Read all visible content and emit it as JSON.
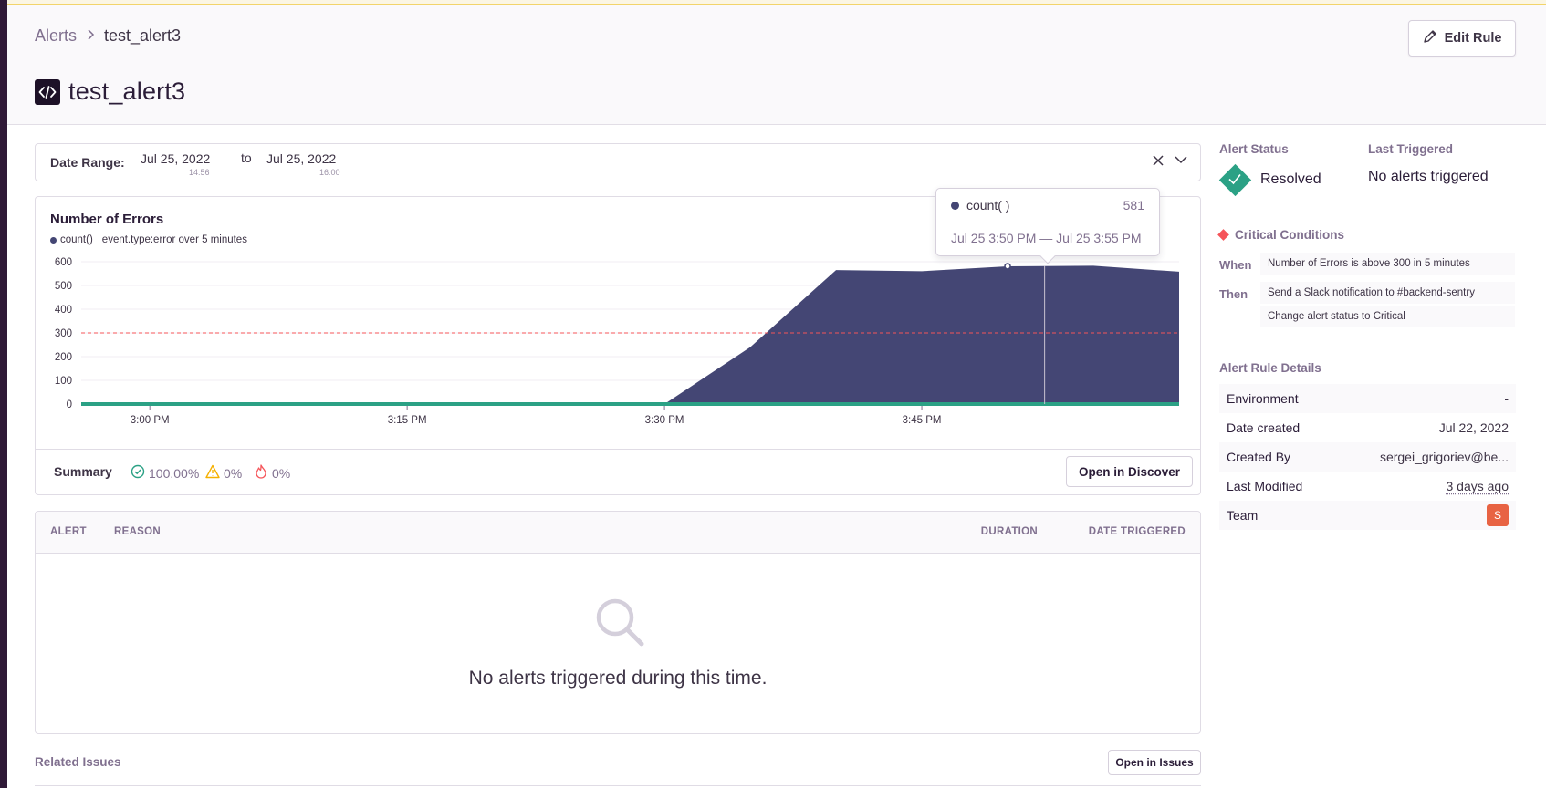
{
  "breadcrumb": {
    "root": "Alerts",
    "current": "test_alert3"
  },
  "header": {
    "title": "test_alert3",
    "edit_button": "Edit Rule"
  },
  "date_range": {
    "label": "Date Range:",
    "start_date": "Jul 25, 2022",
    "start_time": "14:56",
    "to": "to",
    "end_date": "Jul 25, 2022",
    "end_time": "16:00"
  },
  "chart_card": {
    "title": "Number of Errors",
    "legend_series": "count()",
    "legend_query": "event.type:error over 5 minutes",
    "summary_label": "Summary",
    "stats": {
      "resolved": "100.00%",
      "warning": "0%",
      "critical": "0%"
    },
    "open_discover": "Open in Discover"
  },
  "tooltip": {
    "series": "count( )",
    "value": "581",
    "range": "Jul 25 3:50 PM — Jul 25 3:55 PM"
  },
  "chart_data": {
    "type": "area",
    "title": "Number of Errors",
    "series": [
      {
        "name": "count()",
        "color": "#444674",
        "points": [
          [
            "14:56",
            0
          ],
          [
            "15:00",
            0
          ],
          [
            "15:05",
            0
          ],
          [
            "15:10",
            0
          ],
          [
            "15:15",
            0
          ],
          [
            "15:20",
            0
          ],
          [
            "15:25",
            0
          ],
          [
            "15:30",
            0
          ],
          [
            "15:35",
            240
          ],
          [
            "15:40",
            565
          ],
          [
            "15:45",
            560
          ],
          [
            "15:50",
            581
          ],
          [
            "15:55",
            583
          ],
          [
            "16:00",
            558
          ]
        ]
      }
    ],
    "threshold": {
      "value": 300,
      "color": "#f55459"
    },
    "xticks": [
      "3:00 PM",
      "3:15 PM",
      "3:30 PM",
      "3:45 PM"
    ],
    "yticks": [
      0,
      100,
      200,
      300,
      400,
      500,
      600
    ],
    "ylim": [
      0,
      600
    ],
    "status_line_color": "#2ba185",
    "grid": true
  },
  "table": {
    "columns": {
      "alert": "ALERT",
      "reason": "REASON",
      "duration": "DURATION",
      "date_triggered": "DATE TRIGGERED"
    },
    "empty_message": "No alerts triggered during this time."
  },
  "related": {
    "label": "Related Issues",
    "open_issues": "Open in Issues"
  },
  "sidebar": {
    "alert_status_heading": "Alert Status",
    "alert_status": "Resolved",
    "last_triggered_heading": "Last Triggered",
    "last_triggered": "No alerts triggered",
    "critical_heading": "Critical Conditions",
    "when_label": "When",
    "when_text": "Number of Errors is above 300 in 5 minutes",
    "then_label": "Then",
    "then_actions": [
      "Send a Slack notification to #backend-sentry",
      "Change alert status to Critical"
    ],
    "details_heading": "Alert Rule Details",
    "details": [
      {
        "label": "Environment",
        "value": "-"
      },
      {
        "label": "Date created",
        "value": "Jul 22, 2022"
      },
      {
        "label": "Created By",
        "value": "sergei_grigoriev@be..."
      },
      {
        "label": "Last Modified",
        "value": "3 days ago"
      },
      {
        "label": "Team",
        "value": "S"
      }
    ]
  },
  "colors": {
    "accent": "#444674",
    "success": "#2ba185",
    "warning": "#f5b000",
    "error": "#f55459",
    "team": "#e86343"
  }
}
